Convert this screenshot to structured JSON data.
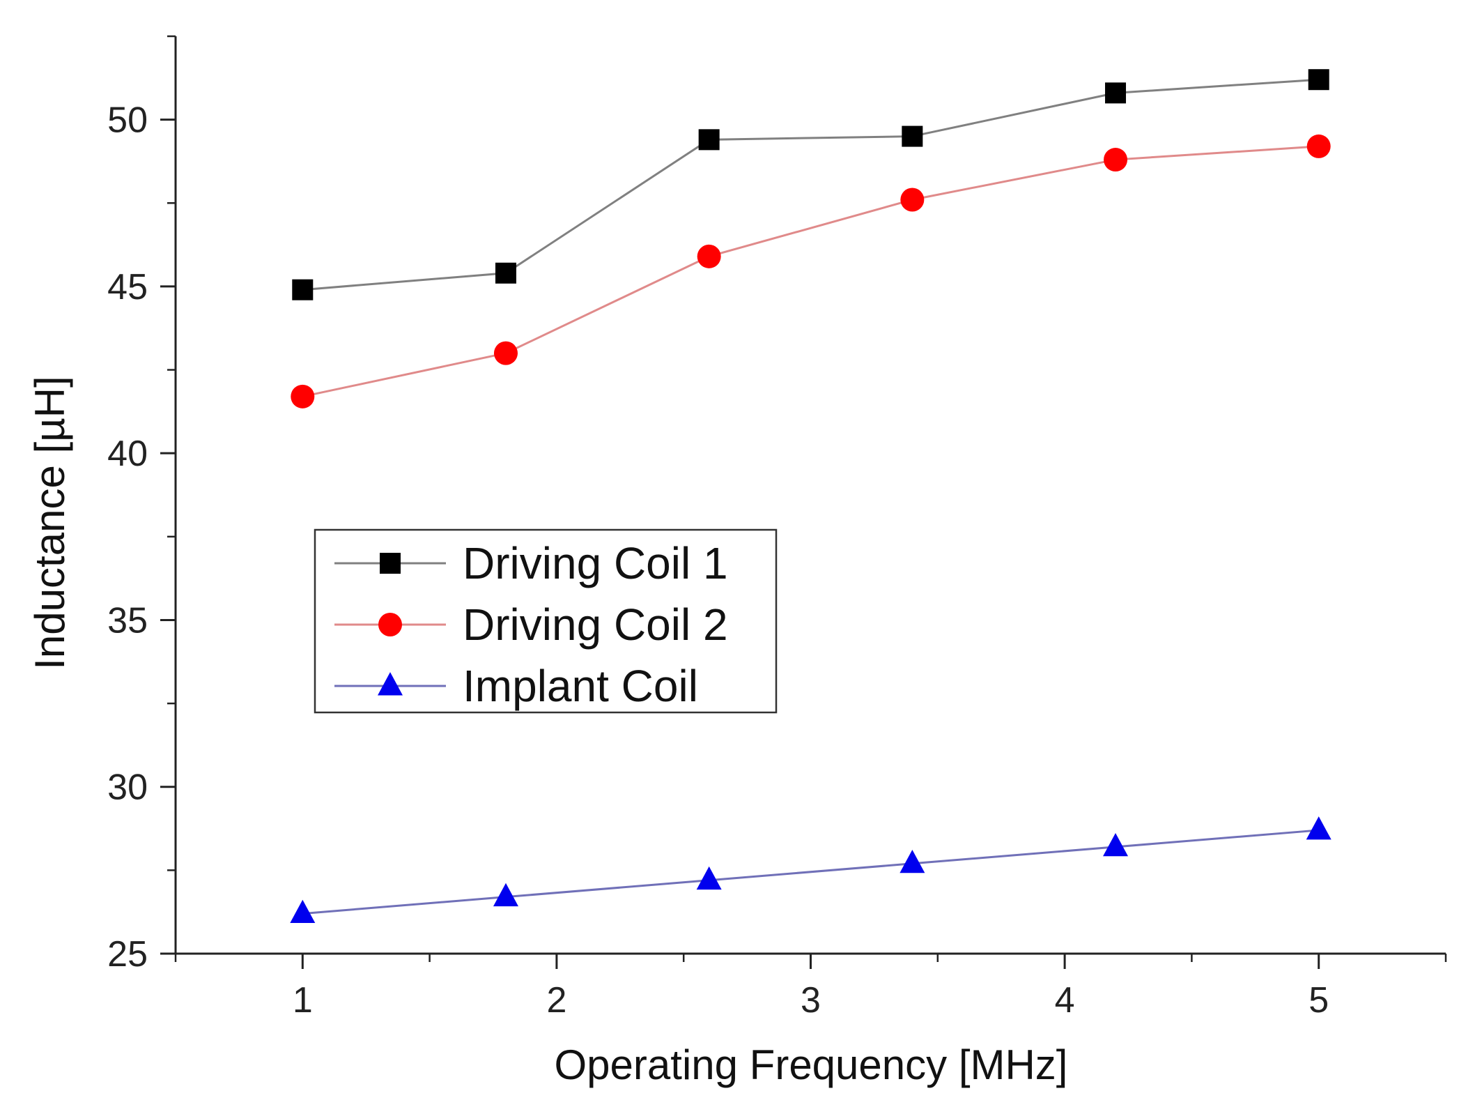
{
  "chart_data": {
    "type": "line",
    "title": "",
    "xlabel": "Operating Frequency [MHz]",
    "ylabel": "Inductance [µH]",
    "xlim": [
      0.5,
      5.5
    ],
    "ylim": [
      25,
      52.5
    ],
    "x_ticks": [
      1,
      2,
      3,
      4,
      5
    ],
    "x_tick_labels": [
      "1",
      "2",
      "3",
      "4",
      "5"
    ],
    "y_ticks": [
      25,
      30,
      35,
      40,
      45,
      50
    ],
    "y_tick_labels": [
      "25",
      "30",
      "35",
      "40",
      "45",
      "50"
    ],
    "grid": false,
    "legend_position": "center-left",
    "x": [
      1,
      1.8,
      2.6,
      3.4,
      4.2,
      5
    ],
    "series": [
      {
        "name": "Driving Coil 1",
        "marker": "square",
        "marker_color": "#000000",
        "line_color": "#808080",
        "values": [
          44.9,
          45.4,
          49.4,
          49.5,
          50.8,
          51.2
        ]
      },
      {
        "name": "Driving Coil 2",
        "marker": "circle",
        "marker_color": "#ff0000",
        "line_color": "#e08a8a",
        "values": [
          41.7,
          43.0,
          45.9,
          47.6,
          48.8,
          49.2
        ]
      },
      {
        "name": "Implant Coil",
        "marker": "triangle",
        "marker_color": "#0000ee",
        "line_color": "#7070b8",
        "values": [
          26.2,
          26.7,
          27.2,
          27.7,
          28.2,
          28.7
        ]
      }
    ]
  }
}
